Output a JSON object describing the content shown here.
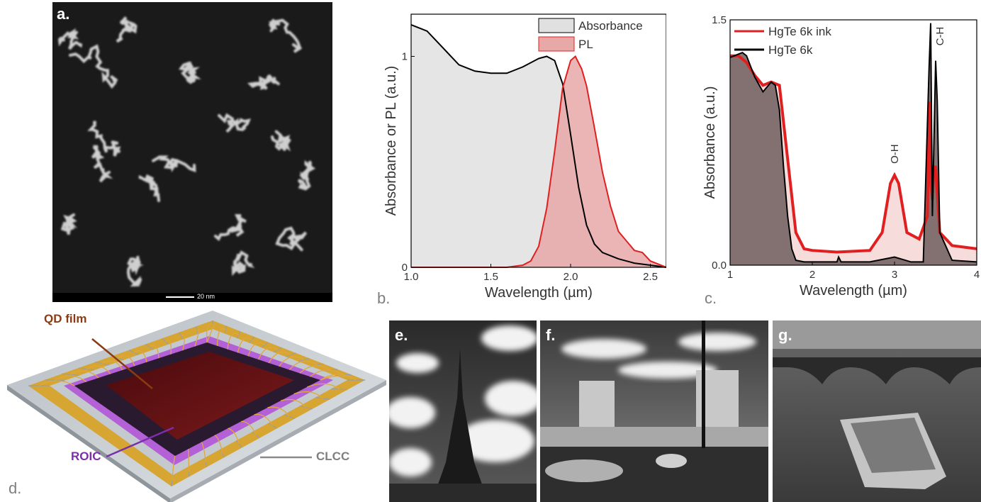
{
  "panels": {
    "a": {
      "letter": "a.",
      "scalebar": "20 nm"
    },
    "b": {
      "letter": "b."
    },
    "c": {
      "letter": "c."
    },
    "d": {
      "letter": "d.",
      "labels": {
        "qd_film": "QD film",
        "roic": "ROIC",
        "clcc": "CLCC"
      }
    },
    "e": {
      "letter": "e."
    },
    "f": {
      "letter": "f."
    },
    "g": {
      "letter": "g."
    }
  },
  "chart_data": [
    {
      "id": "b",
      "type": "area",
      "xlabel": "Wavelength (µm)",
      "ylabel": "Absorbance or PL (a.u.)",
      "xlim": [
        1.0,
        2.6
      ],
      "ylim": [
        0,
        1.2
      ],
      "xticks": [
        "1.0",
        "1.5",
        "2.0",
        "2.5"
      ],
      "yticks": [
        "0",
        "1"
      ],
      "legend_position": "top-right",
      "series": [
        {
          "name": "Absorbance",
          "color": "#000000",
          "fill": "#e0e0e0",
          "x": [
            1.0,
            1.1,
            1.2,
            1.3,
            1.4,
            1.5,
            1.6,
            1.7,
            1.8,
            1.85,
            1.9,
            1.95,
            2.0,
            2.05,
            2.1,
            2.15,
            2.2,
            2.3,
            2.4,
            2.5,
            2.6
          ],
          "y": [
            1.15,
            1.12,
            1.04,
            0.96,
            0.93,
            0.92,
            0.92,
            0.95,
            0.99,
            1.0,
            0.98,
            0.87,
            0.63,
            0.38,
            0.2,
            0.11,
            0.07,
            0.04,
            0.02,
            0.01,
            0.0
          ]
        },
        {
          "name": "PL",
          "color": "#e02020",
          "fill": "#e8a8a8",
          "x": [
            1.0,
            1.6,
            1.7,
            1.75,
            1.8,
            1.85,
            1.9,
            1.95,
            2.0,
            2.03,
            2.07,
            2.1,
            2.15,
            2.2,
            2.25,
            2.3,
            2.4,
            2.45,
            2.5,
            2.6
          ],
          "y": [
            0.0,
            0.0,
            0.01,
            0.03,
            0.1,
            0.28,
            0.55,
            0.85,
            0.98,
            1.0,
            0.94,
            0.86,
            0.66,
            0.45,
            0.29,
            0.17,
            0.08,
            0.07,
            0.03,
            0.0
          ]
        }
      ]
    },
    {
      "id": "c",
      "type": "area",
      "xlabel": "Wavelength (µm)",
      "ylabel": "Absorbance (a.u.)",
      "xlim": [
        1,
        4
      ],
      "ylim": [
        0,
        1.5
      ],
      "xticks": [
        "1",
        "2",
        "3",
        "4"
      ],
      "yticks": [
        "0.0",
        "1.5"
      ],
      "legend_position": "top-left",
      "annotations": [
        "O-H",
        "C-H"
      ],
      "series": [
        {
          "name": "HgTe 6k ink",
          "color": "#e02020",
          "fill": "#f6d6d6",
          "x": [
            1.0,
            1.1,
            1.2,
            1.3,
            1.4,
            1.5,
            1.6,
            1.7,
            1.8,
            1.9,
            2.0,
            2.3,
            2.7,
            2.85,
            2.95,
            3.0,
            3.05,
            3.15,
            3.3,
            3.4,
            3.42,
            3.44,
            3.46,
            3.48,
            3.5,
            3.55,
            3.7,
            4.0
          ],
          "y": [
            1.28,
            1.28,
            1.24,
            1.16,
            1.1,
            1.12,
            1.1,
            0.65,
            0.2,
            0.1,
            0.09,
            0.08,
            0.09,
            0.2,
            0.5,
            0.55,
            0.5,
            0.2,
            0.16,
            0.3,
            1.0,
            0.5,
            0.4,
            0.6,
            0.6,
            0.2,
            0.12,
            0.1
          ]
        },
        {
          "name": "HgTe 6k",
          "color": "#000000",
          "fill": "#6f5e5e",
          "x": [
            1.0,
            1.1,
            1.15,
            1.2,
            1.3,
            1.4,
            1.5,
            1.55,
            1.6,
            1.65,
            1.7,
            1.75,
            1.8,
            1.9,
            2.0,
            2.3,
            2.32,
            2.35,
            2.7,
            3.0,
            3.2,
            3.35,
            3.42,
            3.44,
            3.46,
            3.5,
            3.52,
            3.55,
            3.7,
            4.0
          ],
          "y": [
            1.27,
            1.29,
            1.3,
            1.28,
            1.15,
            1.06,
            1.12,
            1.1,
            0.95,
            0.6,
            0.3,
            0.1,
            0.03,
            0.02,
            0.02,
            0.02,
            0.05,
            0.02,
            0.02,
            0.05,
            0.02,
            0.02,
            1.2,
            1.48,
            0.3,
            1.25,
            1.0,
            0.2,
            0.03,
            0.02
          ]
        }
      ]
    }
  ]
}
